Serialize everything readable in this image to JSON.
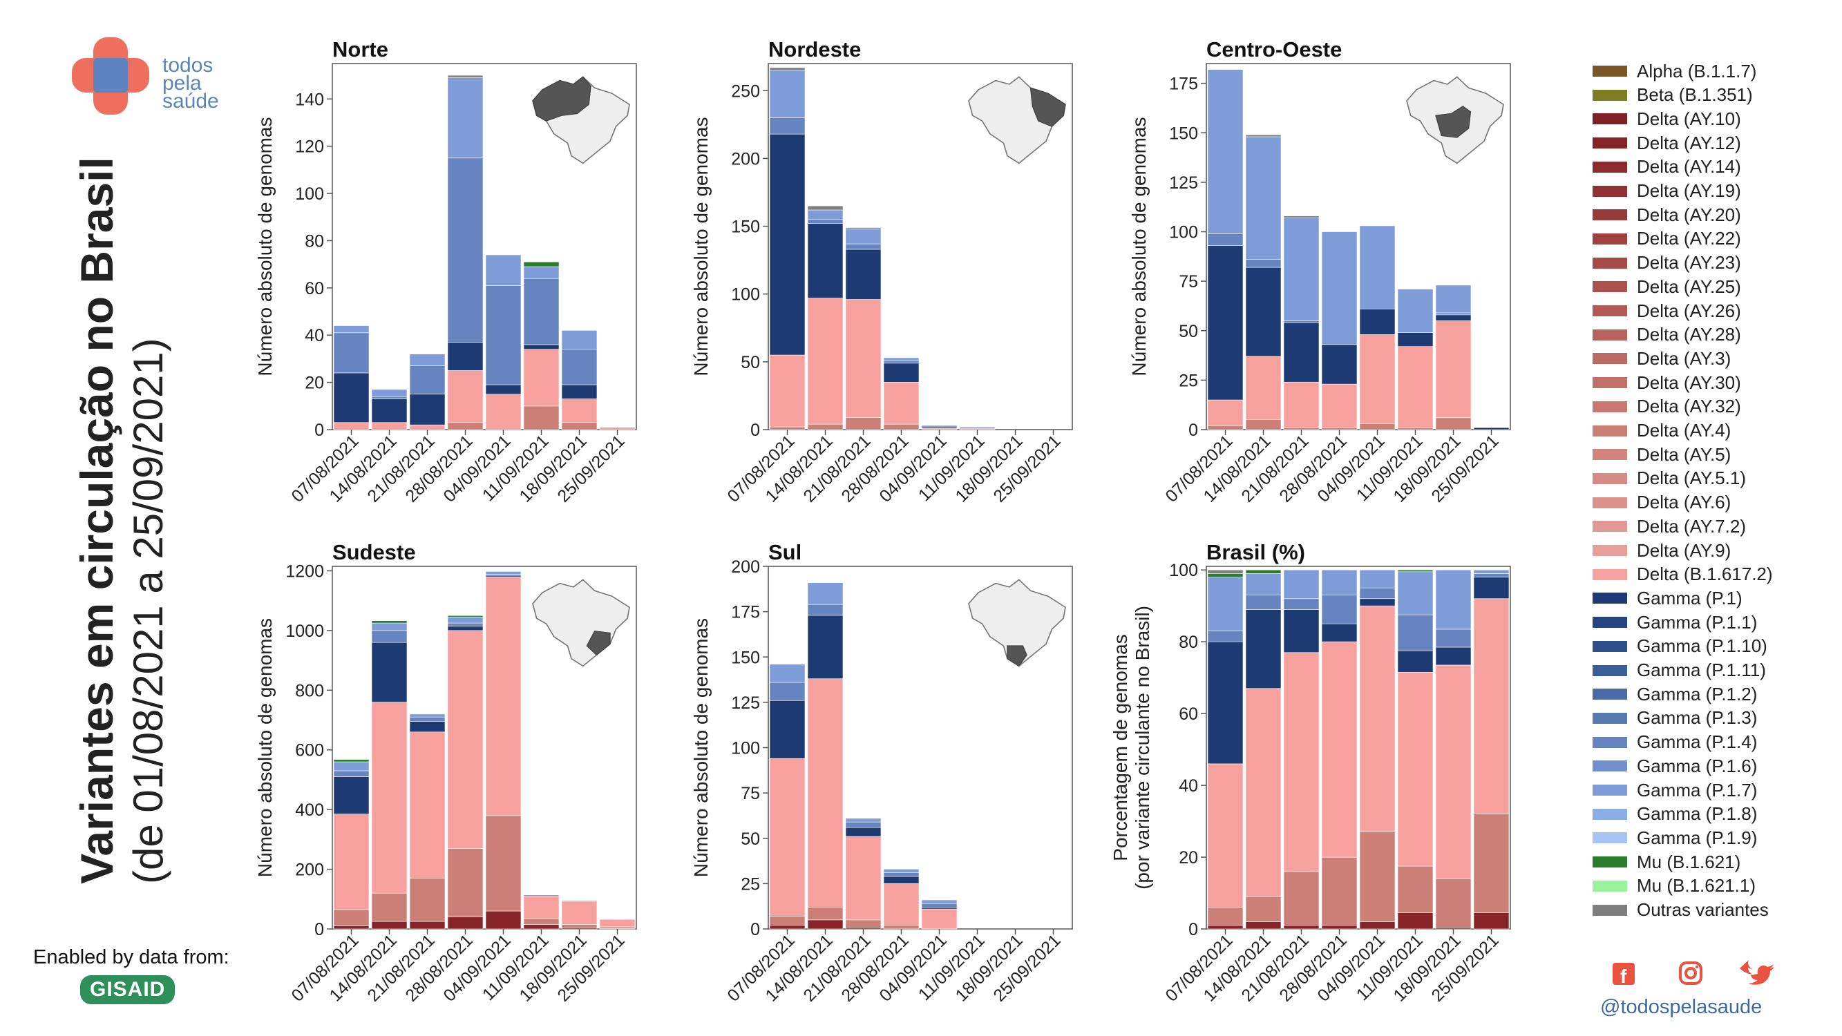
{
  "header": {
    "logo_text": [
      "todos",
      "pela",
      "saúde"
    ],
    "title": "Variantes em circulação no Brasil",
    "subtitle": "(de 01/08/2021 a 25/09/2021)"
  },
  "footer": {
    "enabled_by": "Enabled by data from:",
    "gisaid": "GISAID",
    "handle": "@todospelasaude"
  },
  "icons": [
    "logo-icon",
    "facebook-icon",
    "instagram-icon",
    "twitter-icon",
    "brazil-map-icon"
  ],
  "colors": {
    "Alpha (B.1.1.7)": "#7b5628",
    "Beta (B.1.351)": "#7f7d23",
    "Delta (AY.10)": "#7f1f24",
    "Delta (AY.12)": "#862428",
    "Delta (AY.14)": "#8c2b2e",
    "Delta (AY.19)": "#933234",
    "Delta (AY.20)": "#993a3a",
    "Delta (AY.22)": "#a04240",
    "Delta (AY.23)": "#a64a47",
    "Delta (AY.25)": "#ac524e",
    "Delta (AY.26)": "#b25a55",
    "Delta (AY.28)": "#b7625c",
    "Delta (AY.3)": "#bd6a63",
    "Delta (AY.30)": "#c2716a",
    "Delta (AY.32)": "#c77870",
    "Delta (AY.4)": "#cc7f77",
    "Delta (AY.5)": "#d1857e",
    "Delta (AY.5.1)": "#d68c85",
    "Delta (AY.6)": "#dc928c",
    "Delta (AY.7.2)": "#e19a93",
    "Delta (AY.9)": "#e79f9a",
    "Delta (B.1.617.2)": "#f7a19f",
    "Gamma (P.1)": "#1d3a73",
    "Gamma (P.1.1)": "#25457f",
    "Gamma (P.1.10)": "#2e508a",
    "Gamma (P.1.11)": "#3b5e98",
    "Gamma (P.1.2)": "#4a6ca6",
    "Gamma (P.1.3)": "#587ab3",
    "Gamma (P.1.4)": "#6685c0",
    "Gamma (P.1.6)": "#7190cd",
    "Gamma (P.1.7)": "#7e9cd8",
    "Gamma (P.1.8)": "#8aaee8",
    "Gamma (P.1.9)": "#a6c4f5",
    "Mu (B.1.621)": "#2a7d2a",
    "Mu (B.1.621.1)": "#9af29a",
    "Outras variantes": "#7f7f7f"
  },
  "legend": [
    "Alpha (B.1.1.7)",
    "Beta (B.1.351)",
    "Delta (AY.10)",
    "Delta (AY.12)",
    "Delta (AY.14)",
    "Delta (AY.19)",
    "Delta (AY.20)",
    "Delta (AY.22)",
    "Delta (AY.23)",
    "Delta (AY.25)",
    "Delta (AY.26)",
    "Delta (AY.28)",
    "Delta (AY.3)",
    "Delta (AY.30)",
    "Delta (AY.32)",
    "Delta (AY.4)",
    "Delta (AY.5)",
    "Delta (AY.5.1)",
    "Delta (AY.6)",
    "Delta (AY.7.2)",
    "Delta (AY.9)",
    "Delta (B.1.617.2)",
    "Gamma (P.1)",
    "Gamma (P.1.1)",
    "Gamma (P.1.10)",
    "Gamma (P.1.11)",
    "Gamma (P.1.2)",
    "Gamma (P.1.3)",
    "Gamma (P.1.4)",
    "Gamma (P.1.6)",
    "Gamma (P.1.7)",
    "Gamma (P.1.8)",
    "Gamma (P.1.9)",
    "Mu (B.1.621)",
    "Mu (B.1.621.1)",
    "Outras variantes"
  ],
  "chart_data": [
    {
      "type": "bar",
      "stacked": true,
      "title": "Norte",
      "ylabel": "Número absoluto de genomas",
      "categories": [
        "07/08/2021",
        "14/08/2021",
        "21/08/2021",
        "28/08/2021",
        "04/09/2021",
        "11/09/2021",
        "18/09/2021",
        "25/09/2021"
      ],
      "ylim": [
        0,
        155
      ],
      "yticks": [
        0,
        20,
        40,
        60,
        80,
        100,
        120,
        140
      ],
      "series": [
        {
          "name": "Delta (AY.4)",
          "values": [
            0,
            0,
            0,
            3,
            0,
            10,
            3,
            0
          ]
        },
        {
          "name": "Delta (B.1.617.2)",
          "values": [
            3,
            3,
            2,
            22,
            15,
            24,
            10,
            1
          ]
        },
        {
          "name": "Gamma (P.1)",
          "values": [
            21,
            10,
            13,
            12,
            4,
            2,
            6,
            0
          ]
        },
        {
          "name": "Gamma (P.1.4)",
          "values": [
            17,
            1,
            12,
            78,
            42,
            28,
            15,
            0
          ]
        },
        {
          "name": "Gamma (P.1.7)",
          "values": [
            3,
            3,
            5,
            34,
            13,
            5,
            8,
            0
          ]
        },
        {
          "name": "Mu (B.1.621)",
          "values": [
            0,
            0,
            0,
            0,
            0,
            2,
            0,
            0
          ]
        },
        {
          "name": "Outras variantes",
          "values": [
            0,
            0,
            0,
            1,
            0,
            0,
            0,
            0
          ]
        }
      ]
    },
    {
      "type": "bar",
      "stacked": true,
      "title": "Nordeste",
      "ylabel": "Número absoluto de genomas",
      "categories": [
        "07/08/2021",
        "14/08/2021",
        "21/08/2021",
        "28/08/2021",
        "04/09/2021",
        "11/09/2021",
        "18/09/2021",
        "25/09/2021"
      ],
      "ylim": [
        0,
        270
      ],
      "yticks": [
        0,
        50,
        100,
        150,
        200,
        250
      ],
      "series": [
        {
          "name": "Delta (AY.4)",
          "values": [
            2,
            4,
            9,
            4,
            0,
            0,
            0,
            0
          ]
        },
        {
          "name": "Delta (B.1.617.2)",
          "values": [
            53,
            93,
            87,
            31,
            1,
            1,
            0,
            0
          ]
        },
        {
          "name": "Gamma (P.1)",
          "values": [
            163,
            55,
            37,
            14,
            1,
            0,
            0,
            0
          ]
        },
        {
          "name": "Gamma (P.1.4)",
          "values": [
            12,
            3,
            4,
            2,
            1,
            0,
            0,
            0
          ]
        },
        {
          "name": "Gamma (P.1.7)",
          "values": [
            35,
            7,
            11,
            2,
            0,
            1,
            0,
            0
          ]
        },
        {
          "name": "Outras variantes",
          "values": [
            2,
            3,
            1,
            0,
            0,
            0,
            0,
            0
          ]
        }
      ]
    },
    {
      "type": "bar",
      "stacked": true,
      "title": "Centro-Oeste",
      "ylabel": "Número absoluto de genomas",
      "categories": [
        "07/08/2021",
        "14/08/2021",
        "21/08/2021",
        "28/08/2021",
        "04/09/2021",
        "11/09/2021",
        "18/09/2021",
        "25/09/2021"
      ],
      "ylim": [
        0,
        185
      ],
      "yticks": [
        0,
        25,
        50,
        75,
        100,
        125,
        150,
        175
      ],
      "series": [
        {
          "name": "Delta (AY.4)",
          "values": [
            2,
            5,
            1,
            1,
            3,
            1,
            6,
            0
          ]
        },
        {
          "name": "Delta (B.1.617.2)",
          "values": [
            13,
            32,
            23,
            22,
            45,
            41,
            49,
            0
          ]
        },
        {
          "name": "Gamma (P.1)",
          "values": [
            78,
            45,
            30,
            20,
            13,
            7,
            3,
            1
          ]
        },
        {
          "name": "Gamma (P.1.4)",
          "values": [
            6,
            4,
            1,
            0,
            0,
            0,
            1,
            0
          ]
        },
        {
          "name": "Gamma (P.1.7)",
          "values": [
            83,
            62,
            52,
            57,
            42,
            22,
            14,
            0
          ]
        },
        {
          "name": "Outras variantes",
          "values": [
            0,
            1,
            1,
            0,
            0,
            0,
            0,
            0
          ]
        }
      ]
    },
    {
      "type": "bar",
      "stacked": true,
      "title": "Sudeste",
      "ylabel": "Número absoluto de genomas",
      "categories": [
        "07/08/2021",
        "14/08/2021",
        "21/08/2021",
        "28/08/2021",
        "04/09/2021",
        "11/09/2021",
        "18/09/2021",
        "25/09/2021"
      ],
      "ylim": [
        0,
        1215
      ],
      "yticks": [
        0,
        200,
        400,
        600,
        800,
        1000,
        1200
      ],
      "series": [
        {
          "name": "Delta (AY.12)",
          "values": [
            10,
            25,
            25,
            40,
            60,
            15,
            5,
            2
          ]
        },
        {
          "name": "Delta (AY.4)",
          "values": [
            55,
            95,
            145,
            230,
            320,
            20,
            10,
            5
          ]
        },
        {
          "name": "Delta (B.1.617.2)",
          "values": [
            320,
            640,
            490,
            730,
            800,
            75,
            78,
            25
          ]
        },
        {
          "name": "Gamma (P.1)",
          "values": [
            125,
            200,
            35,
            15,
            5,
            3,
            2,
            0
          ]
        },
        {
          "name": "Gamma (P.1.4)",
          "values": [
            20,
            40,
            15,
            10,
            3,
            1,
            1,
            0
          ]
        },
        {
          "name": "Gamma (P.1.7)",
          "values": [
            30,
            25,
            10,
            20,
            10,
            1,
            2,
            0
          ]
        },
        {
          "name": "Mu (B.1.621)",
          "values": [
            8,
            8,
            0,
            5,
            0,
            0,
            0,
            0
          ]
        }
      ]
    },
    {
      "type": "bar",
      "stacked": true,
      "title": "Sul",
      "ylabel": "Número absoluto de genomas",
      "categories": [
        "07/08/2021",
        "14/08/2021",
        "21/08/2021",
        "28/08/2021",
        "04/09/2021",
        "11/09/2021",
        "18/09/2021",
        "25/09/2021"
      ],
      "ylim": [
        0,
        200
      ],
      "yticks": [
        0,
        25,
        50,
        75,
        100,
        125,
        150,
        175,
        200
      ],
      "series": [
        {
          "name": "Delta (AY.12)",
          "values": [
            2,
            5,
            1,
            0,
            0,
            0,
            0,
            0
          ]
        },
        {
          "name": "Delta (AY.4)",
          "values": [
            5,
            7,
            4,
            2,
            0,
            0,
            0,
            0
          ]
        },
        {
          "name": "Delta (B.1.617.2)",
          "values": [
            87,
            126,
            46,
            23,
            11,
            0,
            0,
            0
          ]
        },
        {
          "name": "Gamma (P.1)",
          "values": [
            32,
            35,
            5,
            4,
            1,
            0,
            0,
            0
          ]
        },
        {
          "name": "Gamma (P.1.4)",
          "values": [
            10,
            6,
            3,
            2,
            2,
            0,
            0,
            0
          ]
        },
        {
          "name": "Gamma (P.1.7)",
          "values": [
            10,
            12,
            2,
            2,
            2,
            0,
            0,
            0
          ]
        }
      ]
    },
    {
      "type": "bar",
      "stacked": true,
      "title": "Brasil (%)",
      "ylabel": "Porcentagem de genomas",
      "ylabel2": "(por variante circulante no Brasil)",
      "categories": [
        "07/08/2021",
        "14/08/2021",
        "21/08/2021",
        "28/08/2021",
        "04/09/2021",
        "11/09/2021",
        "18/09/2021",
        "25/09/2021"
      ],
      "ylim": [
        0,
        101
      ],
      "yticks": [
        0,
        20,
        40,
        60,
        80,
        100
      ],
      "series": [
        {
          "name": "Delta (AY.12)",
          "values": [
            1,
            2,
            1,
            1,
            2,
            4.5,
            0.5,
            4.5
          ]
        },
        {
          "name": "Delta (AY.4)",
          "values": [
            5,
            7,
            15,
            19,
            25,
            13,
            13.5,
            27.5
          ]
        },
        {
          "name": "Delta (B.1.617.2)",
          "values": [
            40,
            58,
            61,
            60,
            63,
            54,
            59.5,
            60
          ]
        },
        {
          "name": "Gamma (P.1)",
          "values": [
            34,
            22,
            12,
            5,
            2,
            6,
            5,
            6
          ]
        },
        {
          "name": "Gamma (P.1.4)",
          "values": [
            3,
            4,
            3,
            8,
            3,
            10,
            5,
            1
          ]
        },
        {
          "name": "Gamma (P.1.7)",
          "values": [
            15,
            6,
            8,
            7,
            5,
            12,
            16.5,
            1
          ]
        },
        {
          "name": "Mu (B.1.621)",
          "values": [
            1,
            1,
            0,
            0,
            0,
            0.5,
            0,
            0
          ]
        },
        {
          "name": "Outras variantes",
          "values": [
            1,
            0,
            0,
            0,
            0,
            0,
            0,
            0
          ]
        }
      ]
    }
  ]
}
